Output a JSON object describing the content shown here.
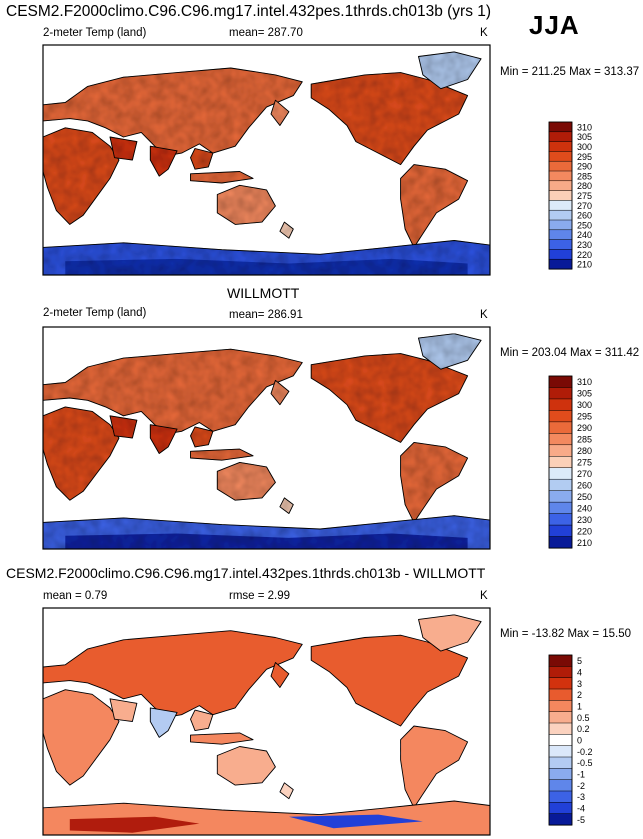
{
  "figure": {
    "title": "CESM2.F2000climo.C96.C96.mg17.intel.432pes.1thrds.ch013b (yrs 1)",
    "season": "JJA"
  },
  "panels": [
    {
      "id": "model",
      "header": "",
      "variable": "2-meter Temp (land)",
      "stat": "mean= 287.70",
      "units": "K",
      "minmax": "Min = 211.25 Max = 313.37"
    },
    {
      "id": "obs",
      "header": "WILLMOTT",
      "variable": "2-meter Temp (land)",
      "stat": "mean= 286.91",
      "units": "K",
      "minmax": "Min = 203.04 Max = 311.42"
    },
    {
      "id": "diff",
      "header": "CESM2.F2000climo.C96.C96.mg17.intel.432pes.1thrds.ch013b - WILLMOTT",
      "variable": "mean =   0.79",
      "stat": "rmse =   2.99",
      "units": "K",
      "minmax": "Min = -13.82 Max =  15.50"
    }
  ],
  "chart_data": [
    {
      "type": "heatmap",
      "title": "CESM2.F2000climo.C96.C96.mg17.intel.432pes.1thrds.ch013b (yrs 1)",
      "subtitle": "2-meter Temp (land)",
      "mean": 287.7,
      "min": 211.25,
      "max": 313.37,
      "units": "K",
      "colorbar_levels": [
        "310",
        "305",
        "300",
        "295",
        "290",
        "285",
        "280",
        "275",
        "270",
        "260",
        "250",
        "240",
        "230",
        "220",
        "210"
      ],
      "colorbar_colors": [
        "#7a0a05",
        "#b01c08",
        "#cf320d",
        "#e04c1c",
        "#ea6a3a",
        "#f3895f",
        "#f8aa88",
        "#fbd0b8",
        "#dcebfa",
        "#b2ccf2",
        "#8aabee",
        "#5f86ea",
        "#3c62e6",
        "#2140d8",
        "#081a98"
      ]
    },
    {
      "type": "heatmap",
      "title": "WILLMOTT",
      "subtitle": "2-meter Temp (land)",
      "mean": 286.91,
      "min": 203.04,
      "max": 311.42,
      "units": "K",
      "colorbar_levels": [
        "310",
        "305",
        "300",
        "295",
        "290",
        "285",
        "280",
        "275",
        "270",
        "260",
        "250",
        "240",
        "230",
        "220",
        "210"
      ],
      "colorbar_colors": [
        "#7a0a05",
        "#b01c08",
        "#cf320d",
        "#e04c1c",
        "#ea6a3a",
        "#f3895f",
        "#f8aa88",
        "#fbd0b8",
        "#dcebfa",
        "#b2ccf2",
        "#8aabee",
        "#5f86ea",
        "#3c62e6",
        "#2140d8",
        "#081a98"
      ]
    },
    {
      "type": "heatmap",
      "title": "CESM2.F2000climo.C96.C96.mg17.intel.432pes.1thrds.ch013b - WILLMOTT",
      "mean": 0.79,
      "rmse": 2.99,
      "min": -13.82,
      "max": 15.5,
      "units": "K",
      "colorbar_levels": [
        "5",
        "4",
        "3",
        "2",
        "1",
        "0.5",
        "0.2",
        "0",
        "-0.2",
        "-0.5",
        "-1",
        "-2",
        "-3",
        "-4",
        "-5"
      ],
      "colorbar_colors": [
        "#7a0a05",
        "#b01c08",
        "#d2320e",
        "#e85b2e",
        "#f4875e",
        "#f8ad8e",
        "#fbd2bf",
        "#ffffff",
        "#dbe8fa",
        "#b3cbf2",
        "#8aabee",
        "#5f86ea",
        "#3c62e6",
        "#2140d8",
        "#081a98"
      ]
    }
  ]
}
